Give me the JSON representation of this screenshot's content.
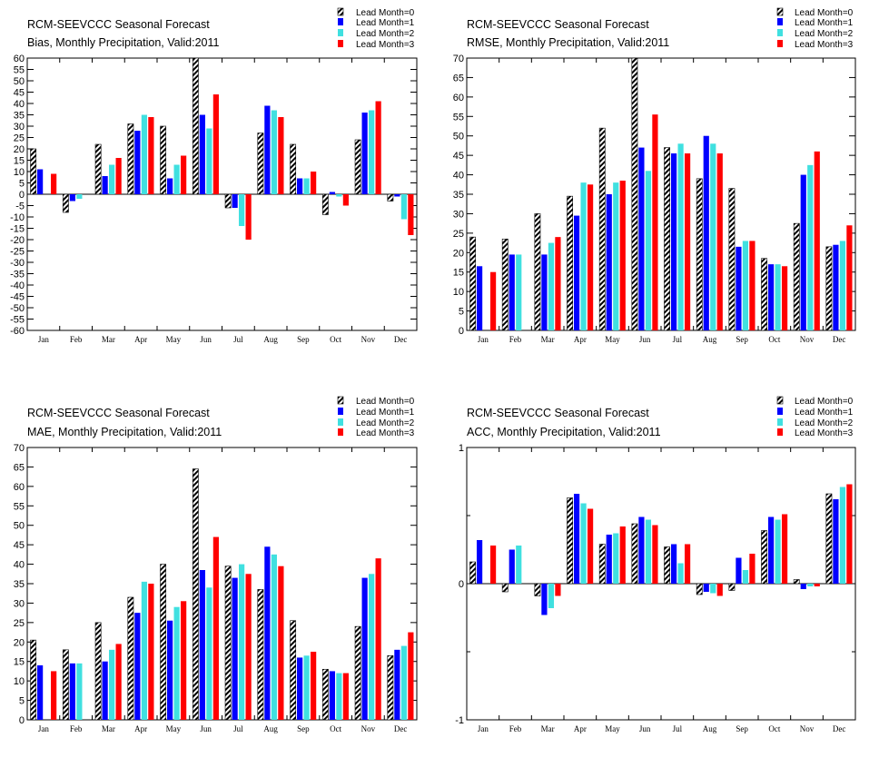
{
  "colors": {
    "lead0": "hatched-black",
    "lead1": "#0000ff",
    "lead2": "#40e0e0",
    "lead3": "#ff0000"
  },
  "chart_data": [
    {
      "type": "bar",
      "title": "RCM-SEEVCCC Seasonal Forecast",
      "subtitle": "Bias, Monthly Precipitation, Valid:2011",
      "categories": [
        "Jan",
        "Feb",
        "Mar",
        "Apr",
        "May",
        "Jun",
        "Jul",
        "Aug",
        "Sep",
        "Oct",
        "Nov",
        "Dec"
      ],
      "series": [
        {
          "name": "Lead Month=0",
          "values": [
            20,
            -8,
            22,
            31,
            30,
            60,
            -6,
            27,
            22,
            -9,
            24,
            -3
          ]
        },
        {
          "name": "Lead Month=1",
          "values": [
            11,
            -3,
            8,
            28,
            7,
            35,
            -6,
            39,
            7,
            1,
            36,
            -1
          ]
        },
        {
          "name": "Lead Month=2",
          "values": [
            0,
            -2,
            13,
            35,
            13,
            29,
            -14,
            37,
            7,
            -1,
            37,
            -11
          ]
        },
        {
          "name": "Lead Month=3",
          "values": [
            9,
            0,
            16,
            34,
            17,
            44,
            -20,
            34,
            10,
            -5,
            41,
            -18
          ]
        }
      ],
      "ylim": [
        -60,
        60
      ],
      "yticks": [
        "60",
        "55",
        "50",
        "45",
        "40",
        "35",
        "30",
        "25",
        "20",
        "15",
        "10",
        "5",
        "0",
        "-5",
        "-10",
        "-15",
        "-20",
        "-25",
        "-30",
        "-35",
        "-40",
        "-45",
        "-50",
        "-55",
        "-60"
      ],
      "legend": "top-right",
      "grid": false
    },
    {
      "type": "bar",
      "title": "RCM-SEEVCCC Seasonal Forecast",
      "subtitle": "RMSE, Monthly Precipitation, Valid:2011",
      "categories": [
        "Jan",
        "Feb",
        "Mar",
        "Apr",
        "May",
        "Jun",
        "Jul",
        "Aug",
        "Sep",
        "Oct",
        "Nov",
        "Dec"
      ],
      "series": [
        {
          "name": "Lead Month=0",
          "values": [
            24,
            23.5,
            30,
            34.5,
            52,
            70,
            47,
            39,
            36.5,
            18.5,
            27.5,
            21.5
          ]
        },
        {
          "name": "Lead Month=1",
          "values": [
            16.5,
            19.5,
            19.5,
            29.5,
            35,
            47,
            45.5,
            50,
            21.5,
            17,
            40,
            22
          ]
        },
        {
          "name": "Lead Month=2",
          "values": [
            0,
            19.5,
            22.5,
            38,
            38,
            41,
            48,
            48,
            23,
            17,
            42.5,
            23
          ]
        },
        {
          "name": "Lead Month=3",
          "values": [
            15,
            0,
            24,
            37.5,
            38.5,
            55.5,
            45.5,
            45.5,
            23,
            16.5,
            46,
            27
          ]
        }
      ],
      "ylim": [
        0,
        70
      ],
      "yticks": [
        "70",
        "65",
        "60",
        "55",
        "50",
        "45",
        "40",
        "35",
        "30",
        "25",
        "20",
        "15",
        "10",
        "5",
        "0"
      ],
      "legend": "top-right",
      "grid": false
    },
    {
      "type": "bar",
      "title": "RCM-SEEVCCC Seasonal Forecast",
      "subtitle": "MAE, Monthly Precipitation, Valid:2011",
      "categories": [
        "Jan",
        "Feb",
        "Mar",
        "Apr",
        "May",
        "Jun",
        "Jul",
        "Aug",
        "Sep",
        "Oct",
        "Nov",
        "Dec"
      ],
      "series": [
        {
          "name": "Lead Month=0",
          "values": [
            20.5,
            18,
            25,
            31.5,
            40,
            64.5,
            39.5,
            33.5,
            25.5,
            13,
            24,
            16.5
          ]
        },
        {
          "name": "Lead Month=1",
          "values": [
            14,
            14.5,
            15,
            27.5,
            25.5,
            38.5,
            36.5,
            44.5,
            16,
            12.5,
            36.5,
            18
          ]
        },
        {
          "name": "Lead Month=2",
          "values": [
            0,
            14.5,
            18,
            35.5,
            29,
            34,
            40,
            42.5,
            16.5,
            12,
            37.5,
            19
          ]
        },
        {
          "name": "Lead Month=3",
          "values": [
            12.5,
            0,
            19.5,
            35,
            30.5,
            47,
            37.5,
            39.5,
            17.5,
            12,
            41.5,
            22.5
          ]
        }
      ],
      "ylim": [
        0,
        70
      ],
      "yticks": [
        "70",
        "65",
        "60",
        "55",
        "50",
        "45",
        "40",
        "35",
        "30",
        "25",
        "20",
        "15",
        "10",
        "5",
        "0"
      ],
      "legend": "top-right",
      "grid": false
    },
    {
      "type": "bar",
      "title": "RCM-SEEVCCC Seasonal Forecast",
      "subtitle": "ACC, Monthly Precipitation, Valid:2011",
      "categories": [
        "Jan",
        "Feb",
        "Mar",
        "Apr",
        "May",
        "Jun",
        "Jul",
        "Aug",
        "Sep",
        "Oct",
        "Nov",
        "Dec"
      ],
      "series": [
        {
          "name": "Lead Month=0",
          "values": [
            0.16,
            -0.06,
            -0.09,
            0.63,
            0.29,
            0.44,
            0.27,
            -0.08,
            -0.05,
            0.39,
            0.03,
            0.66
          ]
        },
        {
          "name": "Lead Month=1",
          "values": [
            0.32,
            0.25,
            -0.23,
            0.66,
            0.36,
            0.49,
            0.29,
            -0.06,
            0.19,
            0.49,
            -0.04,
            0.62
          ]
        },
        {
          "name": "Lead Month=2",
          "values": [
            0,
            0.28,
            -0.18,
            0.59,
            0.37,
            0.47,
            0.15,
            -0.07,
            0.1,
            0.47,
            -0.02,
            0.71
          ]
        },
        {
          "name": "Lead Month=3",
          "values": [
            0.28,
            0,
            -0.09,
            0.55,
            0.42,
            0.43,
            0.29,
            -0.09,
            0.22,
            0.51,
            -0.02,
            0.73
          ]
        }
      ],
      "ylim": [
        -1,
        1
      ],
      "yticks": [
        "1",
        "0",
        "-1"
      ],
      "legend": "top-right",
      "grid": false
    }
  ]
}
